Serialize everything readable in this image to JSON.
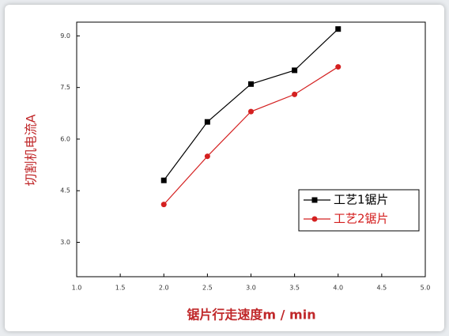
{
  "chart_data": {
    "type": "line",
    "x_label": "锯片行走速度m / min",
    "y_label": "切割机电流A",
    "x": [
      2.0,
      2.5,
      3.0,
      3.5,
      4.0
    ],
    "series": [
      {
        "name": "工艺1锯片",
        "color": "#000000",
        "marker": "square",
        "values": [
          4.8,
          6.5,
          7.6,
          8.0,
          9.2
        ]
      },
      {
        "name": "工艺2锯片",
        "color": "#d42020",
        "marker": "circle",
        "values": [
          4.1,
          5.5,
          6.8,
          7.3,
          8.1
        ]
      }
    ],
    "xlim": [
      1.0,
      5.0
    ],
    "xticks": [
      {
        "value": 1.0,
        "label": "1.0"
      },
      {
        "value": 1.5,
        "label": "1.5"
      },
      {
        "value": 2.0,
        "label": "2.0"
      },
      {
        "value": 2.5,
        "label": "2.5"
      },
      {
        "value": 3.0,
        "label": "3.0"
      },
      {
        "value": 3.5,
        "label": "3.5"
      },
      {
        "value": 4.0,
        "label": "4.0"
      },
      {
        "value": 4.5,
        "label": "4.5"
      },
      {
        "value": 5.0,
        "label": "5.0"
      }
    ],
    "ylim": [
      2.0,
      9.4
    ],
    "yticks": [
      {
        "value": 3.0,
        "label": "3.0"
      },
      {
        "value": 4.5,
        "label": "4.5"
      },
      {
        "value": 6.0,
        "label": "6.0"
      },
      {
        "value": 7.5,
        "label": "7.5"
      },
      {
        "value": 9.0,
        "label": "9.0"
      }
    ],
    "legend": "right"
  }
}
